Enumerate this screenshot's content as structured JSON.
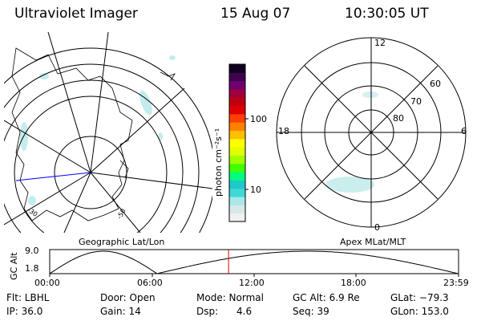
{
  "header": {
    "instrument": "Ultraviolet Imager",
    "date": "15 Aug 07",
    "time": "10:30:05 UT"
  },
  "colorbar": {
    "unit_label": "photon cm⁻²s⁻¹",
    "ticks": [
      "100",
      "10"
    ],
    "colors": [
      "#f0f0f0",
      "#d8e8e8",
      "#a8e8e8",
      "#40d8d8",
      "#20c8c8",
      "#00ff80",
      "#40ff00",
      "#a0ff00",
      "#e0ff00",
      "#ffff00",
      "#ffc000",
      "#ff8000",
      "#ff4000",
      "#e00000",
      "#c00010",
      "#a00040",
      "#700070",
      "#400050",
      "#100020"
    ],
    "scale": "log"
  },
  "geographic_map": {
    "label": "Geographic Lat/Lon",
    "lat_labels": [
      "-30",
      "-50"
    ]
  },
  "mlt_dial": {
    "label": "Apex MLat/MLT",
    "mlt_labels": {
      "top": "12",
      "bottom": "0",
      "left": "18",
      "right": "6"
    },
    "mlat_labels": [
      "60",
      "70",
      "80"
    ]
  },
  "altitude_plot": {
    "ylabel": "GC Alt",
    "y_ticks": [
      "9.0",
      "1.8"
    ],
    "x_ticks": [
      "00:00",
      "06:00",
      "12:00",
      "18:00",
      "23:59"
    ],
    "y_range": [
      1.8,
      9.0
    ],
    "current_time_hours": 10.5,
    "orbit_minima_hours": [
      0.0,
      6.3,
      23.99
    ],
    "marker_color": "#e00000"
  },
  "info_panel": {
    "row1": [
      {
        "label": "Flt: LBHL"
      },
      {
        "label": "Door: Open"
      },
      {
        "label": "Mode: Normal"
      },
      {
        "label": "GC Alt: 6.9 Re"
      },
      {
        "label": "GLat: −79.3"
      }
    ],
    "row2": [
      {
        "label": "IP: 36.0"
      },
      {
        "label": "Gain: 14"
      },
      {
        "label": "Dsp:      4.6"
      },
      {
        "label": "Seq: 39"
      },
      {
        "label": "GLon: 153.0"
      }
    ]
  }
}
